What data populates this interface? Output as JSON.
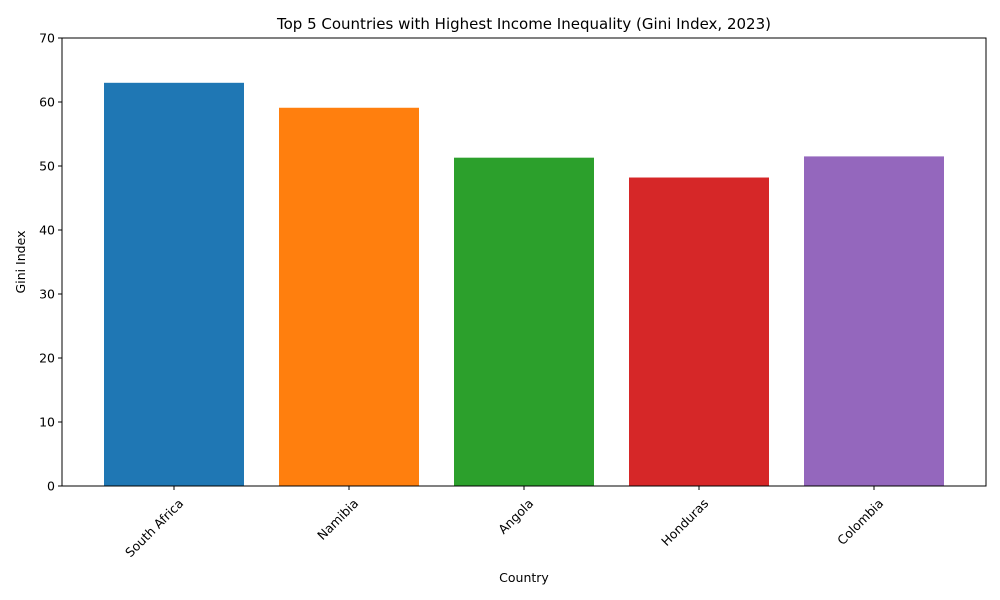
{
  "chart_data": {
    "type": "bar",
    "title": "Top 5 Countries with Highest Income Inequality (Gini Index, 2023)",
    "xlabel": "Country",
    "ylabel": "Gini Index",
    "categories": [
      "South Africa",
      "Namibia",
      "Angola",
      "Honduras",
      "Colombia"
    ],
    "values": [
      63.0,
      59.1,
      51.3,
      48.2,
      51.5
    ],
    "colors": [
      "#1f77b4",
      "#ff7f0e",
      "#2ca02c",
      "#d62728",
      "#9467bd"
    ],
    "ylim": [
      0,
      70
    ],
    "yticks": [
      0,
      10,
      20,
      30,
      40,
      50,
      60,
      70
    ],
    "grid": false,
    "legend": "none",
    "xtick_rotation": 45
  }
}
